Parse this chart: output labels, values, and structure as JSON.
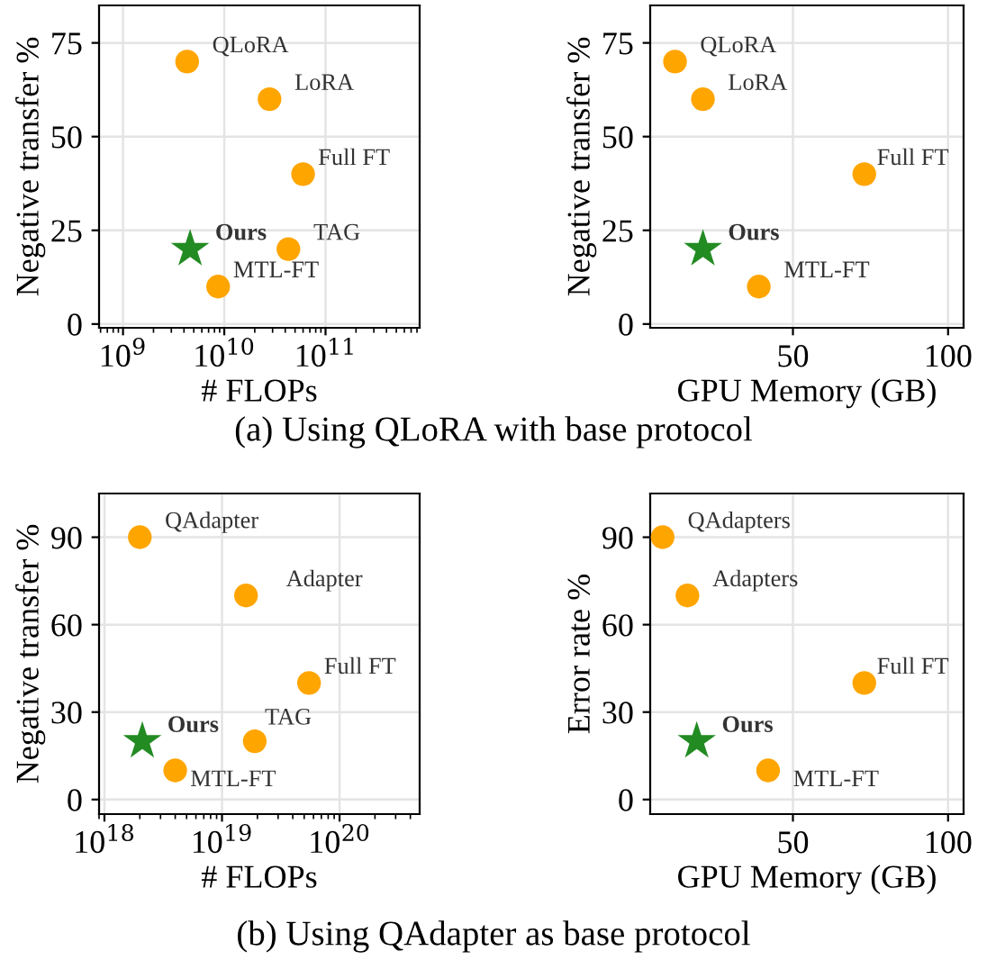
{
  "chart_data": [
    {
      "type": "scatter",
      "xlabel": "# FLOPs",
      "ylabel": "Negative transfer %",
      "log": "x",
      "grid": true,
      "xlim": [
        580000000.0,
        850000000000.0
      ],
      "xticks": [
        {
          "value": 1000000000.0,
          "label": "10$^{9}$"
        },
        {
          "value": 10000000000.0,
          "label": "10$^{10}$"
        },
        {
          "value": 100000000000.0,
          "label": "10$^{11}$"
        }
      ],
      "ylim": [
        -1,
        85
      ],
      "yticks": [
        0,
        25,
        50,
        75
      ],
      "annotations": [
        "(a) Using QLoRA with base protocol"
      ],
      "series": [
        {
          "name": "QLoRA",
          "color": "#ffa500",
          "marker": "circle",
          "x": [
            4300000000.0
          ],
          "values": [
            70
          ]
        },
        {
          "name": "LoRA",
          "color": "#ffa500",
          "marker": "circle",
          "x": [
            28000000000.0
          ],
          "values": [
            60
          ]
        },
        {
          "name": "Full FT",
          "color": "#ffa500",
          "marker": "circle",
          "x": [
            60000000000.0
          ],
          "values": [
            40
          ]
        },
        {
          "name": "TAG",
          "color": "#ffa500",
          "marker": "circle",
          "x": [
            43000000000.0
          ],
          "values": [
            20
          ]
        },
        {
          "name": "MTL-FT",
          "color": "#ffa500",
          "marker": "circle",
          "x": [
            8700000000.0
          ],
          "values": [
            10
          ]
        },
        {
          "name": "Ours",
          "color": "#228b22",
          "marker": "star",
          "x": [
            4600000000.0
          ],
          "values": [
            20
          ]
        }
      ]
    },
    {
      "type": "scatter",
      "xlabel": "GPU Memory (GB)",
      "ylabel": "Negative transfer %",
      "grid": true,
      "xlim": [
        4,
        105
      ],
      "xticks": [
        50,
        100
      ],
      "ylim": [
        -1,
        85
      ],
      "yticks": [
        0,
        25,
        50,
        75
      ],
      "series": [
        {
          "name": "QLoRA",
          "color": "#ffa500",
          "marker": "circle",
          "x": [
            12
          ],
          "values": [
            70
          ]
        },
        {
          "name": "LoRA",
          "color": "#ffa500",
          "marker": "circle",
          "x": [
            21
          ],
          "values": [
            60
          ]
        },
        {
          "name": "Full FT",
          "color": "#ffa500",
          "marker": "circle",
          "x": [
            73
          ],
          "values": [
            40
          ]
        },
        {
          "name": "MTL-FT",
          "color": "#ffa500",
          "marker": "circle",
          "x": [
            39
          ],
          "values": [
            10
          ]
        },
        {
          "name": "Ours",
          "color": "#228b22",
          "marker": "star",
          "x": [
            21
          ],
          "values": [
            20
          ]
        }
      ]
    },
    {
      "type": "scatter",
      "xlabel": "# FLOPs",
      "ylabel": "Negative transfer %",
      "log": "x",
      "grid": true,
      "xlim": [
        9e+17,
        4.8e+20
      ],
      "xticks": [
        {
          "value": 1e+18,
          "label": "10$^{18}$"
        },
        {
          "value": 1e+19,
          "label": "10$^{19}$"
        },
        {
          "value": 1e+20,
          "label": "10$^{20}$"
        }
      ],
      "ylim": [
        -5,
        105
      ],
      "yticks": [
        0,
        30,
        60,
        90
      ],
      "annotations": [
        "(b) Using QAdapter as base protocol"
      ],
      "series": [
        {
          "name": "QAdapter",
          "color": "#ffa500",
          "marker": "circle",
          "x": [
            2e+18
          ],
          "values": [
            90
          ]
        },
        {
          "name": "Adapter",
          "color": "#ffa500",
          "marker": "circle",
          "x": [
            1.6e+19
          ],
          "values": [
            70
          ]
        },
        {
          "name": "Full FT",
          "color": "#ffa500",
          "marker": "circle",
          "x": [
            5.5e+19
          ],
          "values": [
            40
          ]
        },
        {
          "name": "TAG",
          "color": "#ffa500",
          "marker": "circle",
          "x": [
            1.9e+19
          ],
          "values": [
            20
          ]
        },
        {
          "name": "MTL-FT",
          "color": "#ffa500",
          "marker": "circle",
          "x": [
            4e+18
          ],
          "values": [
            10
          ]
        },
        {
          "name": "Ours",
          "color": "#228b22",
          "marker": "star",
          "x": [
            2.1e+18
          ],
          "values": [
            20
          ]
        }
      ]
    },
    {
      "type": "scatter",
      "xlabel": "GPU Memory (GB)",
      "ylabel": "Error rate %",
      "grid": true,
      "xlim": [
        4,
        105
      ],
      "xticks": [
        50,
        100
      ],
      "ylim": [
        -5,
        105
      ],
      "yticks": [
        0,
        30,
        60,
        90
      ],
      "series": [
        {
          "name": "QAdapters",
          "color": "#ffa500",
          "marker": "circle",
          "x": [
            8
          ],
          "values": [
            90
          ]
        },
        {
          "name": "Adapters",
          "color": "#ffa500",
          "marker": "circle",
          "x": [
            16
          ],
          "values": [
            70
          ]
        },
        {
          "name": "Full FT",
          "color": "#ffa500",
          "marker": "circle",
          "x": [
            73
          ],
          "values": [
            40
          ]
        },
        {
          "name": "MTL-FT",
          "color": "#ffa500",
          "marker": "circle",
          "x": [
            42
          ],
          "values": [
            10
          ]
        },
        {
          "name": "Ours",
          "color": "#228b22",
          "marker": "star",
          "x": [
            19
          ],
          "values": [
            20
          ]
        }
      ]
    }
  ]
}
